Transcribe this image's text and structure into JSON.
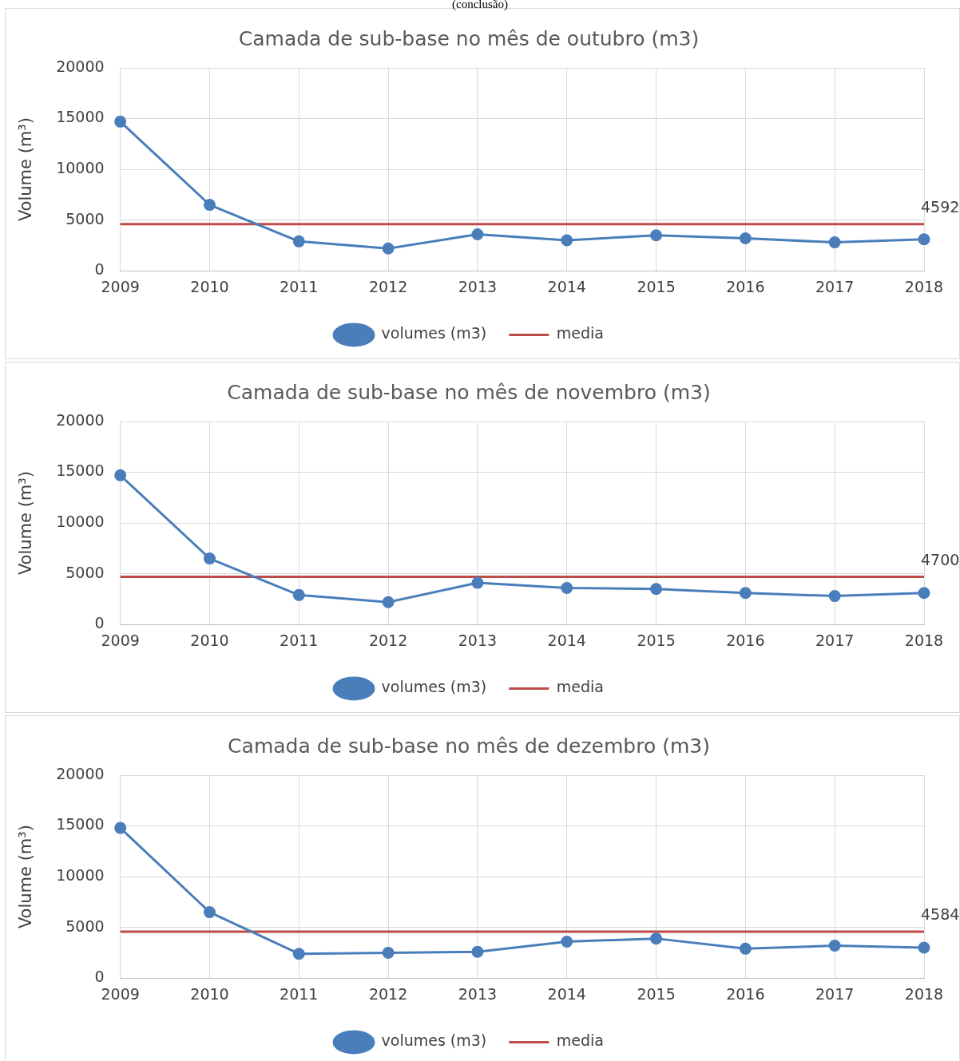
{
  "chart_data": [
    {
      "type": "line",
      "title": "Camada de sub-base no mês de outubro (m3)",
      "ylabel": "Volume (m³)",
      "annotations": [
        "(conclusão)"
      ],
      "categories": [
        "2009",
        "2010",
        "2011",
        "2012",
        "2013",
        "2014",
        "2015",
        "2016",
        "2017",
        "2018"
      ],
      "ylim": [
        0,
        20000
      ],
      "yticks": [
        0,
        5000,
        10000,
        15000,
        20000
      ],
      "grid": true,
      "legend": "bottom",
      "series": [
        {
          "name": "volumes (m3)",
          "color": "#4a7ebb",
          "marker": "circle",
          "values": [
            14700,
            6500,
            2900,
            2200,
            3600,
            3000,
            3500,
            3200,
            2800,
            3100
          ]
        },
        {
          "name": "media",
          "color": "#be4b48",
          "marker": "none",
          "values": [
            4592,
            4592,
            4592,
            4592,
            4592,
            4592,
            4592,
            4592,
            4592,
            4592
          ],
          "value_labels": [
            null,
            null,
            null,
            null,
            null,
            null,
            null,
            null,
            null,
            "4592"
          ]
        }
      ]
    },
    {
      "type": "line",
      "title": "Camada de sub-base no mês de novembro (m3)",
      "ylabel": "Volume (m³)",
      "categories": [
        "2009",
        "2010",
        "2011",
        "2012",
        "2013",
        "2014",
        "2015",
        "2016",
        "2017",
        "2018"
      ],
      "ylim": [
        0,
        20000
      ],
      "yticks": [
        0,
        5000,
        10000,
        15000,
        20000
      ],
      "grid": true,
      "legend": "bottom",
      "series": [
        {
          "name": "volumes (m3)",
          "color": "#4a7ebb",
          "marker": "circle",
          "values": [
            14700,
            6500,
            2900,
            2200,
            4100,
            3600,
            3500,
            3100,
            2800,
            3100
          ]
        },
        {
          "name": "media",
          "color": "#be4b48",
          "marker": "none",
          "values": [
            4700,
            4700,
            4700,
            4700,
            4700,
            4700,
            4700,
            4700,
            4700,
            4700
          ],
          "value_labels": [
            null,
            null,
            null,
            null,
            null,
            null,
            null,
            null,
            null,
            "4700"
          ]
        }
      ]
    },
    {
      "type": "line",
      "title": "Camada de sub-base no mês de dezembro (m3)",
      "ylabel": "Volume (m³)",
      "categories": [
        "2009",
        "2010",
        "2011",
        "2012",
        "2013",
        "2014",
        "2015",
        "2016",
        "2017",
        "2018"
      ],
      "ylim": [
        0,
        20000
      ],
      "yticks": [
        0,
        5000,
        10000,
        15000,
        20000
      ],
      "grid": true,
      "legend": "bottom",
      "series": [
        {
          "name": "volumes (m3)",
          "color": "#4a7ebb",
          "marker": "circle",
          "values": [
            14800,
            6500,
            2400,
            2500,
            2600,
            3600,
            3900,
            2900,
            3200,
            3000
          ]
        },
        {
          "name": "media",
          "color": "#be4b48",
          "marker": "none",
          "values": [
            4584,
            4584,
            4584,
            4584,
            4584,
            4584,
            4584,
            4584,
            4584,
            4584
          ],
          "value_labels": [
            null,
            null,
            null,
            null,
            null,
            null,
            null,
            null,
            null,
            "4584"
          ]
        }
      ]
    }
  ]
}
